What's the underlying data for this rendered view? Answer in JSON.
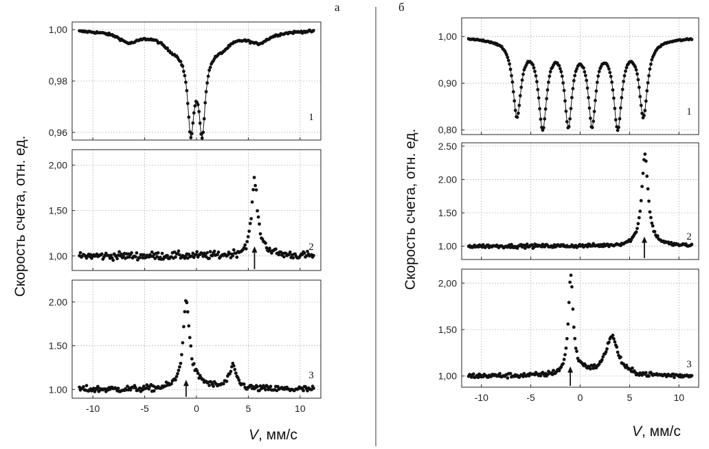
{
  "chart_data": [
    {
      "id": "a",
      "type": "scatter",
      "panel_label": "а",
      "y_label": "Скорость счета, отн. ед.",
      "x_label_var": "V",
      "x_label_unit": ", мм/с",
      "xlim": [
        -12,
        12
      ],
      "xticks": [
        -10,
        -5,
        0,
        5,
        10
      ],
      "xtick_labels": [
        "-10",
        "-5",
        "0",
        "5",
        "10"
      ],
      "grid": true,
      "subplots": [
        {
          "number": "1",
          "ylim": [
            0.957,
            1.003
          ],
          "yticks": [
            0.96,
            0.98,
            1.0
          ],
          "ytick_labels": [
            "0,96",
            "0,98",
            "1,00"
          ],
          "arrow_x": null,
          "profile": {
            "base": 1.0,
            "noise": 0.0004,
            "components": [
              [
                -0.55,
                0.33,
                -0.028
              ],
              [
                0.55,
                0.33,
                -0.028
              ],
              [
                0.0,
                1.8,
                -0.012
              ],
              [
                -6.5,
                1.2,
                -0.004
              ],
              [
                6.0,
                1.2,
                -0.004
              ],
              [
                -2.5,
                1.0,
                -0.003
              ],
              [
                2.5,
                1.0,
                -0.003
              ]
            ]
          }
        },
        {
          "number": "2",
          "ylim": [
            0.84,
            2.17
          ],
          "yticks": [
            1.0,
            1.5,
            2.0
          ],
          "ytick_labels": [
            "1,00",
            "1,50",
            "2,00"
          ],
          "arrow_x": 5.6,
          "profile": {
            "base": 1.0,
            "noise": 0.04,
            "components": [
              [
                5.6,
                0.32,
                0.78
              ],
              [
                6.1,
                0.9,
                0.08
              ],
              [
                -10.0,
                0.5,
                0.0
              ]
            ]
          }
        },
        {
          "number": "3",
          "ylim": [
            0.9,
            2.25
          ],
          "yticks": [
            1.0,
            1.5,
            2.0
          ],
          "ytick_labels": [
            "1.00",
            "1.50",
            "2.00"
          ],
          "arrow_x": -1.0,
          "profile": {
            "base": 1.0,
            "noise": 0.035,
            "components": [
              [
                -0.98,
                0.36,
                1.0
              ],
              [
                3.5,
                0.45,
                0.24
              ],
              [
                0.1,
                1.1,
                0.07
              ]
            ]
          }
        }
      ]
    },
    {
      "id": "b",
      "type": "scatter",
      "panel_label": "б",
      "y_label": "Скорость счета, отн. ед.",
      "x_label_var": "V",
      "x_label_unit": ", мм/с",
      "xlim": [
        -12,
        12
      ],
      "xticks": [
        -10,
        -5,
        0,
        5,
        10
      ],
      "xtick_labels": [
        "-10",
        "-5",
        "0",
        "5",
        "10"
      ],
      "grid": true,
      "subplots": [
        {
          "number": "1",
          "ylim": [
            0.79,
            1.04
          ],
          "yticks": [
            0.8,
            0.9,
            1.0
          ],
          "ytick_labels": [
            "0,80",
            "0,90",
            "1,00"
          ],
          "arrow_x": null,
          "profile": {
            "base": 1.0,
            "noise": 0.0015,
            "components": [
              [
                -6.4,
                0.5,
                -0.16
              ],
              [
                -3.8,
                0.5,
                -0.18
              ],
              [
                -1.2,
                0.45,
                -0.17
              ],
              [
                1.2,
                0.45,
                -0.17
              ],
              [
                3.8,
                0.5,
                -0.18
              ],
              [
                6.4,
                0.5,
                -0.16
              ],
              [
                0.0,
                6.5,
                -0.01
              ]
            ]
          }
        },
        {
          "number": "2",
          "ylim": [
            0.8,
            2.55
          ],
          "yticks": [
            1.0,
            1.5,
            2.0,
            2.5
          ],
          "ytick_labels": [
            "1.00",
            "1.50",
            "2.00",
            "2.50"
          ],
          "arrow_x": 6.5,
          "profile": {
            "base": 1.0,
            "noise": 0.025,
            "components": [
              [
                6.55,
                0.38,
                1.33
              ],
              [
                7.0,
                1.0,
                0.05
              ]
            ]
          }
        },
        {
          "number": "3",
          "ylim": [
            0.88,
            2.15
          ],
          "yticks": [
            1.0,
            1.5,
            2.0
          ],
          "ytick_labels": [
            "1,00",
            "1,50",
            "2,00"
          ],
          "arrow_x": -1.0,
          "profile": {
            "base": 1.0,
            "noise": 0.025,
            "components": [
              [
                -0.95,
                0.28,
                1.07
              ],
              [
                3.2,
                0.75,
                0.42
              ],
              [
                0.2,
                1.0,
                0.05
              ]
            ]
          }
        }
      ]
    }
  ]
}
